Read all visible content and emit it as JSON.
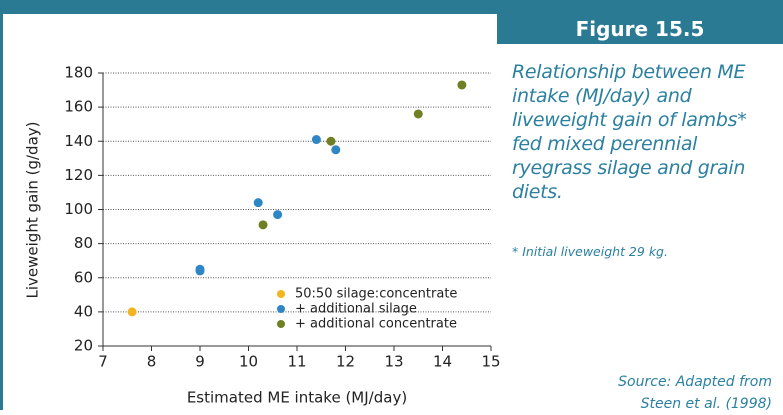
{
  "chart_data": {
    "type": "scatter",
    "title": "Figure 15.5",
    "caption": "Relationship between ME intake (MJ/day) and liveweight gain of lambs* fed mixed perennial ryegrass silage and grain diets.",
    "note": "* Initial liveweight 29 kg.",
    "source": "Source: Adapted from Steen et al. (1998)",
    "x_label": "Estimated ME intake (MJ/day)",
    "y_label": "Liveweight gain (g/day)",
    "xlim": [
      7,
      15
    ],
    "ylim": [
      20,
      180
    ],
    "xticks": [
      7,
      8,
      9,
      10,
      11,
      12,
      13,
      14,
      15
    ],
    "yticks": [
      20,
      40,
      60,
      80,
      100,
      120,
      140,
      160,
      180
    ],
    "grid": true,
    "legend": "lower right",
    "series": [
      {
        "name": "50:50 silage:concentrate",
        "color": "#f2b51f",
        "x": [
          7.6
        ],
        "values": [
          40
        ]
      },
      {
        "name": "+ additional silage",
        "color": "#2f86c4",
        "x": [
          9,
          9,
          10.2,
          10.6,
          11.4,
          11.8
        ],
        "values": [
          65,
          64,
          104,
          97,
          141,
          135
        ]
      },
      {
        "name": "+ additional concentrate",
        "color": "#6f7f24",
        "x": [
          10.3,
          11.7,
          13.5,
          14.4
        ],
        "values": [
          91,
          140,
          156,
          173
        ]
      }
    ]
  }
}
